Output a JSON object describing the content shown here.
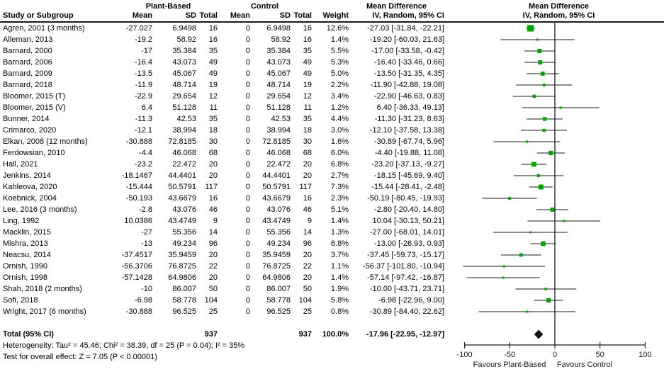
{
  "headers": {
    "group_plant": "Plant-Based",
    "group_control": "Control",
    "effect_col_title": "Mean Difference",
    "effect_plot_title": "Mean Difference",
    "col_study": "Study or Subgroup",
    "col_mean_pb": "Mean",
    "col_sd_pb": "SD",
    "col_total_pb": "Total",
    "col_mean_c": "Mean",
    "col_sd_c": "SD",
    "col_total_c": "Total",
    "col_weight": "Weight",
    "col_ci_text": "IV, Random, 95% CI",
    "col_ci_plot": "IV, Random, 95% CI"
  },
  "footer": {
    "heterogeneity": "Heterogeneity: Tau² = 45.46; Chi² = 38.39, df = 25 (P = 0.04); I² = 35%",
    "overall_effect": "Test for overall effect: Z = 7.05 (P < 0.00001)"
  },
  "chart_data": {
    "type": "forest",
    "effect_measure": "Mean Difference",
    "model": "IV, Random, 95% CI",
    "xlim": [
      -100,
      100
    ],
    "ticks": [
      -100,
      -50,
      0,
      50,
      100
    ],
    "favours_left": "Favours Plant-Based",
    "favours_right": "Favours Control",
    "marker_color": "#00a400",
    "line_color": "#1a1a1a",
    "studies": [
      {
        "name": "Agren, 2001 (3 months)",
        "m1": "-27.027",
        "sd1": "6.9498",
        "n1": "16",
        "m2": "0",
        "sd2": "6.9498",
        "n2": "16",
        "weight": "12.6%",
        "md": "-27.03 [-31.84, -22.21]",
        "est": -27.03,
        "lo": -31.84,
        "hi": -22.21,
        "w": 12.6
      },
      {
        "name": "Alleman, 2013",
        "m1": "-19.2",
        "sd1": "58.92",
        "n1": "16",
        "m2": "0",
        "sd2": "58.92",
        "n2": "16",
        "weight": "1.4%",
        "md": "-19.20 [-60.03, 21.63]",
        "est": -19.2,
        "lo": -60.03,
        "hi": 21.63,
        "w": 1.4
      },
      {
        "name": "Barnard, 2000",
        "m1": "-17",
        "sd1": "35.384",
        "n1": "35",
        "m2": "0",
        "sd2": "35.384",
        "n2": "35",
        "weight": "5.5%",
        "md": "-17.00 [-33.58, -0.42]",
        "est": -17,
        "lo": -33.58,
        "hi": -0.42,
        "w": 5.5
      },
      {
        "name": "Barnard, 2006",
        "m1": "-16.4",
        "sd1": "43.073",
        "n1": "49",
        "m2": "0",
        "sd2": "43.073",
        "n2": "49",
        "weight": "5.3%",
        "md": "-16.40 [-33.46, 0.66]",
        "est": -16.4,
        "lo": -33.46,
        "hi": 0.66,
        "w": 5.3
      },
      {
        "name": "Barnard, 2009",
        "m1": "-13.5",
        "sd1": "45.067",
        "n1": "49",
        "m2": "0",
        "sd2": "45.067",
        "n2": "49",
        "weight": "5.0%",
        "md": "-13.50 [-31.35, 4.35]",
        "est": -13.5,
        "lo": -31.35,
        "hi": 4.35,
        "w": 5.0
      },
      {
        "name": "Barnard, 2018",
        "m1": "-11.9",
        "sd1": "48.714",
        "n1": "19",
        "m2": "0",
        "sd2": "48.714",
        "n2": "19",
        "weight": "2.2%",
        "md": "-11.90 [-42.88, 19.08]",
        "est": -11.9,
        "lo": -42.88,
        "hi": 19.08,
        "w": 2.2
      },
      {
        "name": "Bloomer, 2015 (T)",
        "m1": "-22.9",
        "sd1": "29.654",
        "n1": "12",
        "m2": "0",
        "sd2": "29.654",
        "n2": "12",
        "weight": "3.4%",
        "md": "-22.90 [-46.63, 0.83]",
        "est": -22.9,
        "lo": -46.63,
        "hi": 0.83,
        "w": 3.4
      },
      {
        "name": "Bloomer, 2015 (V)",
        "m1": "6.4",
        "sd1": "51.128",
        "n1": "11",
        "m2": "0",
        "sd2": "51.128",
        "n2": "11",
        "weight": "1.2%",
        "md": "6.40 [-36.33, 49.13]",
        "est": 6.4,
        "lo": -36.33,
        "hi": 49.13,
        "w": 1.2
      },
      {
        "name": "Bunner, 2014",
        "m1": "-11.3",
        "sd1": "42.53",
        "n1": "35",
        "m2": "0",
        "sd2": "42.53",
        "n2": "35",
        "weight": "4.4%",
        "md": "-11.30 [-31.23, 8.63]",
        "est": -11.3,
        "lo": -31.23,
        "hi": 8.63,
        "w": 4.4
      },
      {
        "name": "Crimarco, 2020",
        "m1": "-12.1",
        "sd1": "38.994",
        "n1": "18",
        "m2": "0",
        "sd2": "38.994",
        "n2": "18",
        "weight": "3.0%",
        "md": "-12.10 [-37.58, 13.38]",
        "est": -12.1,
        "lo": -37.58,
        "hi": 13.38,
        "w": 3.0
      },
      {
        "name": "Elkan, 2008 (12 months)",
        "m1": "-30.888",
        "sd1": "72.8185",
        "n1": "30",
        "m2": "0",
        "sd2": "72.8185",
        "n2": "30",
        "weight": "1.6%",
        "md": "-30.89 [-67.74, 5.96]",
        "est": -30.89,
        "lo": -67.74,
        "hi": 5.96,
        "w": 1.6
      },
      {
        "name": "Ferdowsian, 2010",
        "m1": "-4.4",
        "sd1": "46.068",
        "n1": "68",
        "m2": "0",
        "sd2": "46.068",
        "n2": "68",
        "weight": "6.0%",
        "md": "-4.40 [-19.88, 11.08]",
        "est": -4.4,
        "lo": -19.88,
        "hi": 11.08,
        "w": 6.0
      },
      {
        "name": "Hall, 2021",
        "m1": "-23.2",
        "sd1": "22.472",
        "n1": "20",
        "m2": "0",
        "sd2": "22.472",
        "n2": "20",
        "weight": "6.8%",
        "md": "-23.20 [-37.13, -9.27]",
        "est": -23.2,
        "lo": -37.13,
        "hi": -9.27,
        "w": 6.8
      },
      {
        "name": "Jenkins, 2014",
        "m1": "-18.1467",
        "sd1": "44.4401",
        "n1": "20",
        "m2": "0",
        "sd2": "44.4401",
        "n2": "20",
        "weight": "2.7%",
        "md": "-18.15 [-45.69, 9.40]",
        "est": -18.15,
        "lo": -45.69,
        "hi": 9.4,
        "w": 2.7
      },
      {
        "name": "Kahleova, 2020",
        "m1": "-15.444",
        "sd1": "50.5791",
        "n1": "117",
        "m2": "0",
        "sd2": "50.5791",
        "n2": "117",
        "weight": "7.3%",
        "md": "-15.44 [-28.41, -2.48]",
        "est": -15.44,
        "lo": -28.41,
        "hi": -2.48,
        "w": 7.3
      },
      {
        "name": "Koebnick, 2004",
        "m1": "-50.193",
        "sd1": "43.6679",
        "n1": "16",
        "m2": "0",
        "sd2": "43.6679",
        "n2": "16",
        "weight": "2.3%",
        "md": "-50.19 [-80.45, -19.93]",
        "est": -50.19,
        "lo": -80.45,
        "hi": -19.93,
        "w": 2.3
      },
      {
        "name": "Lee, 2016 (3 months)",
        "m1": "-2.8",
        "sd1": "43.076",
        "n1": "46",
        "m2": "0",
        "sd2": "43.076",
        "n2": "46",
        "weight": "5.1%",
        "md": "-2.80 [-20.40, 14.80]",
        "est": -2.8,
        "lo": -20.4,
        "hi": 14.8,
        "w": 5.1
      },
      {
        "name": "Ling, 1992",
        "m1": "10.0386",
        "sd1": "43.4749",
        "n1": "9",
        "m2": "0",
        "sd2": "43.4749",
        "n2": "9",
        "weight": "1.4%",
        "md": "10.04 [-30.13, 50.21]",
        "est": 10.04,
        "lo": -30.13,
        "hi": 50.21,
        "w": 1.4
      },
      {
        "name": "Macklin, 2015",
        "m1": "-27",
        "sd1": "55.356",
        "n1": "14",
        "m2": "0",
        "sd2": "55.356",
        "n2": "14",
        "weight": "1.3%",
        "md": "-27.00 [-68.01, 14.01]",
        "est": -27,
        "lo": -68.01,
        "hi": 14.01,
        "w": 1.3
      },
      {
        "name": "Mishra, 2013",
        "m1": "-13",
        "sd1": "49.234",
        "n1": "96",
        "m2": "0",
        "sd2": "49.234",
        "n2": "96",
        "weight": "6.8%",
        "md": "-13.00 [-26.93, 0.93]",
        "est": -13,
        "lo": -26.93,
        "hi": 0.93,
        "w": 6.8
      },
      {
        "name": "Neacsu, 2014",
        "m1": "-37.4517",
        "sd1": "35.9459",
        "n1": "20",
        "m2": "0",
        "sd2": "35.9459",
        "n2": "20",
        "weight": "3.7%",
        "md": "-37.45 [-59.73, -15.17]",
        "est": -37.45,
        "lo": -59.73,
        "hi": -15.17,
        "w": 3.7
      },
      {
        "name": "Ornish, 1990",
        "m1": "-56.3706",
        "sd1": "76.8725",
        "n1": "22",
        "m2": "0",
        "sd2": "76.8725",
        "n2": "22",
        "weight": "1.1%",
        "md": "-56.37 [-101.80, -10.94]",
        "est": -56.37,
        "lo": -101.8,
        "hi": -10.94,
        "w": 1.1
      },
      {
        "name": "Ornish, 1998",
        "m1": "-57.1428",
        "sd1": "64.9806",
        "n1": "20",
        "m2": "0",
        "sd2": "64.9806",
        "n2": "20",
        "weight": "1.4%",
        "md": "-57.14 [-97.42, -16.87]",
        "est": -57.14,
        "lo": -97.42,
        "hi": -16.87,
        "w": 1.4
      },
      {
        "name": "Shah, 2018 (2 months)",
        "m1": "-10",
        "sd1": "86.007",
        "n1": "50",
        "m2": "0",
        "sd2": "86.007",
        "n2": "50",
        "weight": "1.9%",
        "md": "-10.00 [-43.71, 23.71]",
        "est": -10,
        "lo": -43.71,
        "hi": 23.71,
        "w": 1.9
      },
      {
        "name": "Sofi, 2018",
        "m1": "-6.98",
        "sd1": "58.778",
        "n1": "104",
        "m2": "0",
        "sd2": "58.778",
        "n2": "104",
        "weight": "5.8%",
        "md": "-6.98 [-22.96, 9.00]",
        "est": -6.98,
        "lo": -22.96,
        "hi": 9.0,
        "w": 5.8
      },
      {
        "name": "Wright, 2017 (6 months)",
        "m1": "-30.888",
        "sd1": "96.525",
        "n1": "25",
        "m2": "0",
        "sd2": "96.525",
        "n2": "25",
        "weight": "0.8%",
        "md": "-30.89 [-84.40, 22.62]",
        "est": -30.89,
        "lo": -84.4,
        "hi": 22.62,
        "w": 0.8
      }
    ],
    "total": {
      "label": "Total (95% CI)",
      "n1": "937",
      "n2": "937",
      "weight": "100.0%",
      "md": "-17.96 [-22.95, -12.97]",
      "est": -17.96,
      "lo": -22.95,
      "hi": -12.97
    }
  }
}
